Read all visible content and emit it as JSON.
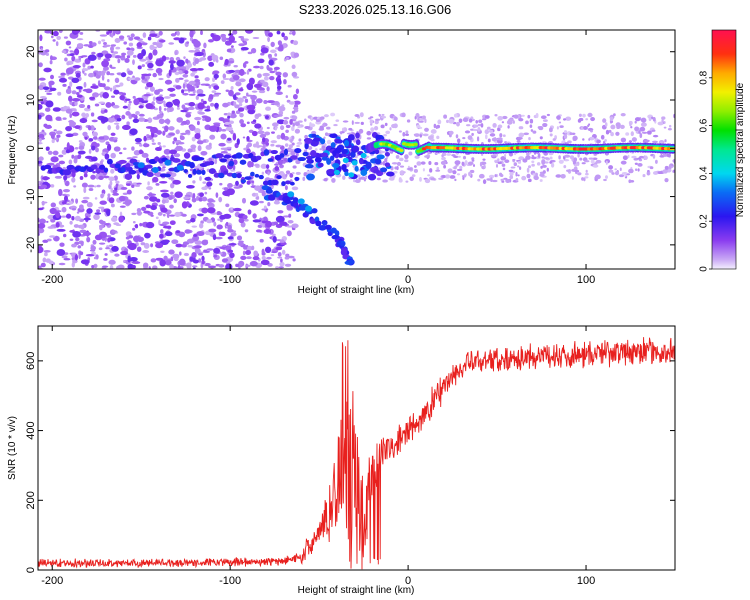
{
  "title": "S233.2026.025.13.16.G06",
  "chart_data": [
    {
      "type": "heatmap",
      "xlabel": "Height of straight line (km)",
      "ylabel": "Frequency (Hz)",
      "xlim": [
        -208,
        150
      ],
      "ylim": [
        -25,
        24.5
      ],
      "xticks": [
        -200,
        -100,
        0,
        100
      ],
      "yticks": [
        -20,
        -10,
        0,
        10,
        20
      ],
      "colorbar": {
        "label": "Normalized spectral amplitude",
        "range": [
          0,
          1
        ],
        "ticks": [
          0,
          0.2,
          0.4,
          0.6,
          0.8
        ]
      },
      "features": {
        "noise_region_x": [
          -208,
          -70
        ],
        "main_tone_freq_hz": 0,
        "tone_start_x": 0,
        "descending_branch": [
          [
            -80,
            -9
          ],
          [
            -60,
            -12
          ],
          [
            -40,
            -18
          ],
          [
            -32,
            -24
          ]
        ]
      }
    },
    {
      "type": "line",
      "xlabel": "Height of straight line (km)",
      "ylabel": "SNR (10 * v/v)",
      "xlim": [
        -208,
        150
      ],
      "ylim": [
        0,
        700
      ],
      "xticks": [
        -200,
        -100,
        0,
        100
      ],
      "yticks": [
        0,
        200,
        400,
        600
      ],
      "series": [
        {
          "color": "#e8201e",
          "profile": {
            "x": [
              -208,
              -150,
              -100,
              -70,
              -60,
              -50,
              -40,
              -35,
              -30,
              -25,
              -20,
              -15,
              -10,
              -5,
              0,
              5,
              10,
              15,
              20,
              30,
              40,
              60,
              80,
              100,
              120,
              150
            ],
            "y": [
              20,
              20,
              22,
              25,
              40,
              100,
              230,
              300,
              260,
              150,
              280,
              330,
              350,
              370,
              395,
              420,
              450,
              490,
              530,
              580,
              600,
              610,
              615,
              620,
              625,
              625
            ]
          }
        }
      ]
    }
  ]
}
